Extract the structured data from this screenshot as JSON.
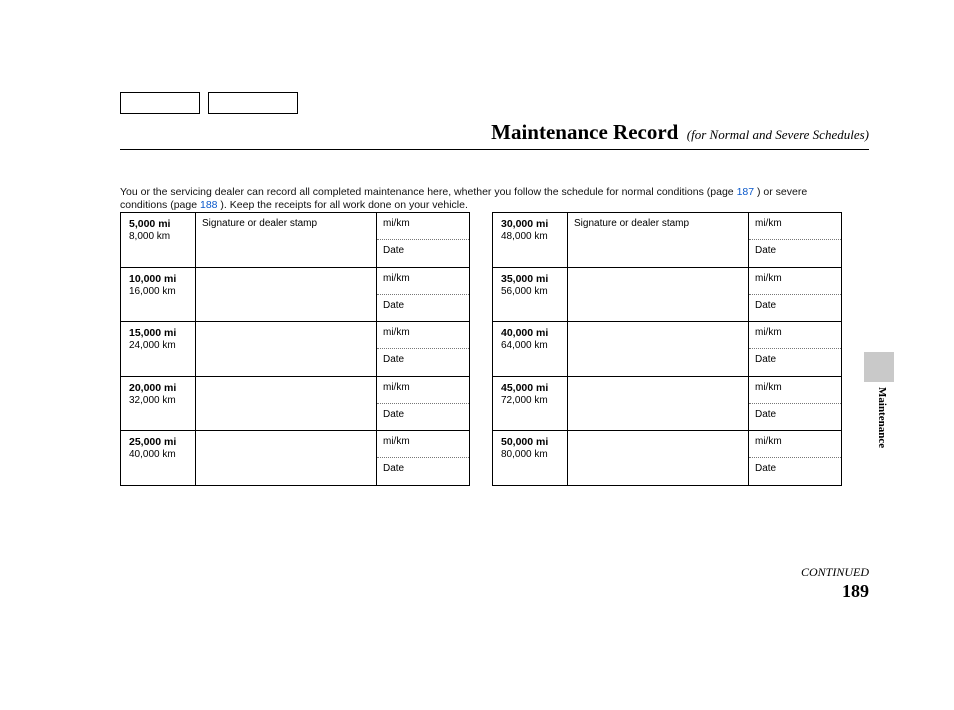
{
  "heading": {
    "title": "Maintenance Record",
    "subtitle": "(for Normal and Severe Schedules)"
  },
  "intro": {
    "part1": "You or the servicing dealer can record all completed maintenance here, whether you follow the schedule for normal conditions (page ",
    "link1": "187",
    "part2": " ) or severe conditions (page ",
    "link2": "188",
    "part3": " ). Keep the receipts for all work done on your vehicle."
  },
  "labels": {
    "sig_header": "Signature or dealer stamp",
    "mikm": "mi/km",
    "date": "Date",
    "continued": "CONTINUED",
    "side": "Maintenance"
  },
  "page_number": "189",
  "left_rows": [
    {
      "mi": "5,000 mi",
      "km": "8,000 km",
      "show_sig_header": true
    },
    {
      "mi": "10,000 mi",
      "km": "16,000 km",
      "show_sig_header": false
    },
    {
      "mi": "15,000 mi",
      "km": "24,000 km",
      "show_sig_header": false
    },
    {
      "mi": "20,000 mi",
      "km": "32,000 km",
      "show_sig_header": false
    },
    {
      "mi": "25,000 mi",
      "km": "40,000 km",
      "show_sig_header": false
    }
  ],
  "right_rows": [
    {
      "mi": "30,000 mi",
      "km": "48,000 km",
      "show_sig_header": true
    },
    {
      "mi": "35,000 mi",
      "km": "56,000 km",
      "show_sig_header": false
    },
    {
      "mi": "40,000 mi",
      "km": "64,000 km",
      "show_sig_header": false
    },
    {
      "mi": "45,000 mi",
      "km": "72,000 km",
      "show_sig_header": false
    },
    {
      "mi": "50,000 mi",
      "km": "80,000 km",
      "show_sig_header": false
    }
  ]
}
